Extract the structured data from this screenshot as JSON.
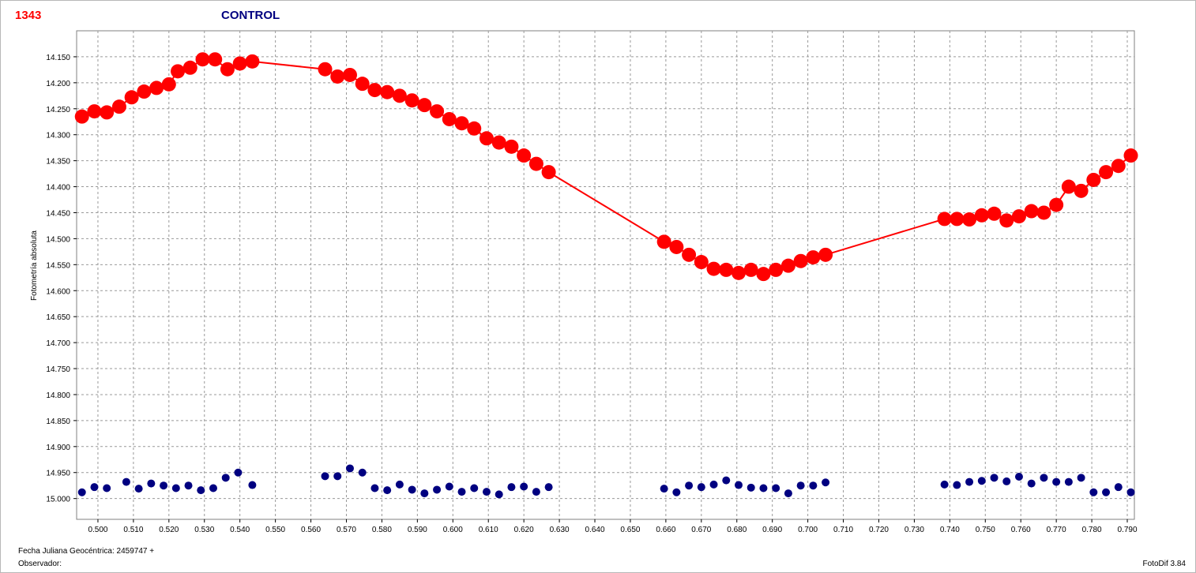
{
  "header": {
    "object_id": "1343",
    "control_label": "CONTROL"
  },
  "footer": {
    "jd_label": "Fecha Juliana Geocéntrica: 2459747 +",
    "observer_label": "Observador:",
    "software": "FotoDif 3.84"
  },
  "chart_data": {
    "type": "scatter",
    "title": "",
    "xlabel": "",
    "ylabel": "Fotometría absoluta",
    "xlim": [
      0.494,
      0.792
    ],
    "ylim": [
      14.1,
      15.04
    ],
    "y_inverted": true,
    "grid": true,
    "x_ticks": [
      "0.500",
      "0.510",
      "0.520",
      "0.530",
      "0.540",
      "0.550",
      "0.560",
      "0.570",
      "0.580",
      "0.590",
      "0.600",
      "0.610",
      "0.620",
      "0.630",
      "0.640",
      "0.650",
      "0.660",
      "0.670",
      "0.680",
      "0.690",
      "0.700",
      "0.710",
      "0.720",
      "0.730",
      "0.740",
      "0.750",
      "0.760",
      "0.770",
      "0.780",
      "0.790"
    ],
    "y_ticks": [
      "14.150",
      "14.200",
      "14.250",
      "14.300",
      "14.350",
      "14.400",
      "14.450",
      "14.500",
      "14.550",
      "14.600",
      "14.650",
      "14.700",
      "14.750",
      "14.800",
      "14.850",
      "14.900",
      "14.950",
      "15.000"
    ],
    "series": [
      {
        "color": "#ff0000",
        "line": true,
        "x": [
          0.4955,
          0.499,
          0.5025,
          0.506,
          0.5095,
          0.513,
          0.5165,
          0.52,
          0.5225,
          0.526,
          0.5295,
          0.533,
          0.5365,
          0.54,
          0.5435,
          0.564,
          0.5675,
          0.571,
          0.5745,
          0.578,
          0.5815,
          0.585,
          0.5885,
          0.592,
          0.5955,
          0.599,
          0.6025,
          0.606,
          0.6095,
          0.613,
          0.6165,
          0.62,
          0.6235,
          0.627,
          0.6595,
          0.663,
          0.6665,
          0.67,
          0.6735,
          0.677,
          0.6805,
          0.684,
          0.6875,
          0.691,
          0.6945,
          0.698,
          0.7015,
          0.705,
          0.7385,
          0.742,
          0.7455,
          0.749,
          0.7525,
          0.756,
          0.7595,
          0.763,
          0.7665,
          0.77,
          0.7735,
          0.777,
          0.7805,
          0.784,
          0.7875,
          0.791
        ],
        "y": [
          14.265,
          14.255,
          14.257,
          14.246,
          14.228,
          14.217,
          14.21,
          14.203,
          14.178,
          14.171,
          14.155,
          14.155,
          14.174,
          14.163,
          14.159,
          14.174,
          14.188,
          14.185,
          14.202,
          14.214,
          14.218,
          14.225,
          14.234,
          14.243,
          14.255,
          14.27,
          14.278,
          14.288,
          14.307,
          14.315,
          14.323,
          14.34,
          14.356,
          14.372,
          14.506,
          14.516,
          14.531,
          14.545,
          14.558,
          14.56,
          14.566,
          14.56,
          14.568,
          14.56,
          14.552,
          14.543,
          14.536,
          14.531,
          14.462,
          14.462,
          14.463,
          14.455,
          14.452,
          14.465,
          14.457,
          14.447,
          14.45,
          14.435,
          14.4,
          14.408,
          14.387,
          14.372,
          14.36,
          14.34
        ]
      },
      {
        "color": "#000080",
        "line": false,
        "x": [
          0.4955,
          0.499,
          0.5025,
          0.508,
          0.5115,
          0.515,
          0.5185,
          0.522,
          0.5255,
          0.529,
          0.5325,
          0.536,
          0.5395,
          0.5435,
          0.564,
          0.5675,
          0.571,
          0.5745,
          0.578,
          0.5815,
          0.585,
          0.5885,
          0.592,
          0.5955,
          0.599,
          0.6025,
          0.606,
          0.6095,
          0.613,
          0.6165,
          0.62,
          0.6235,
          0.627,
          0.6595,
          0.663,
          0.6665,
          0.67,
          0.6735,
          0.677,
          0.6805,
          0.684,
          0.6875,
          0.691,
          0.6945,
          0.698,
          0.7015,
          0.705,
          0.7385,
          0.742,
          0.7455,
          0.749,
          0.7525,
          0.756,
          0.7595,
          0.763,
          0.7665,
          0.77,
          0.7735,
          0.777,
          0.7805,
          0.784,
          0.7875,
          0.791
        ],
        "y": [
          14.988,
          14.978,
          14.98,
          14.968,
          14.981,
          14.971,
          14.975,
          14.98,
          14.975,
          14.984,
          14.98,
          14.96,
          14.95,
          14.974,
          14.957,
          14.957,
          14.942,
          14.95,
          14.98,
          14.984,
          14.973,
          14.983,
          14.99,
          14.983,
          14.977,
          14.987,
          14.98,
          14.987,
          14.992,
          14.978,
          14.977,
          14.987,
          14.978,
          14.981,
          14.988,
          14.975,
          14.978,
          14.973,
          14.965,
          14.974,
          14.979,
          14.98,
          14.98,
          14.99,
          14.975,
          14.975,
          14.969,
          14.973,
          14.974,
          14.968,
          14.966,
          14.96,
          14.967,
          14.958,
          14.971,
          14.96,
          14.968,
          14.968,
          14.96,
          14.988,
          14.988,
          14.978,
          14.988
        ]
      }
    ]
  }
}
